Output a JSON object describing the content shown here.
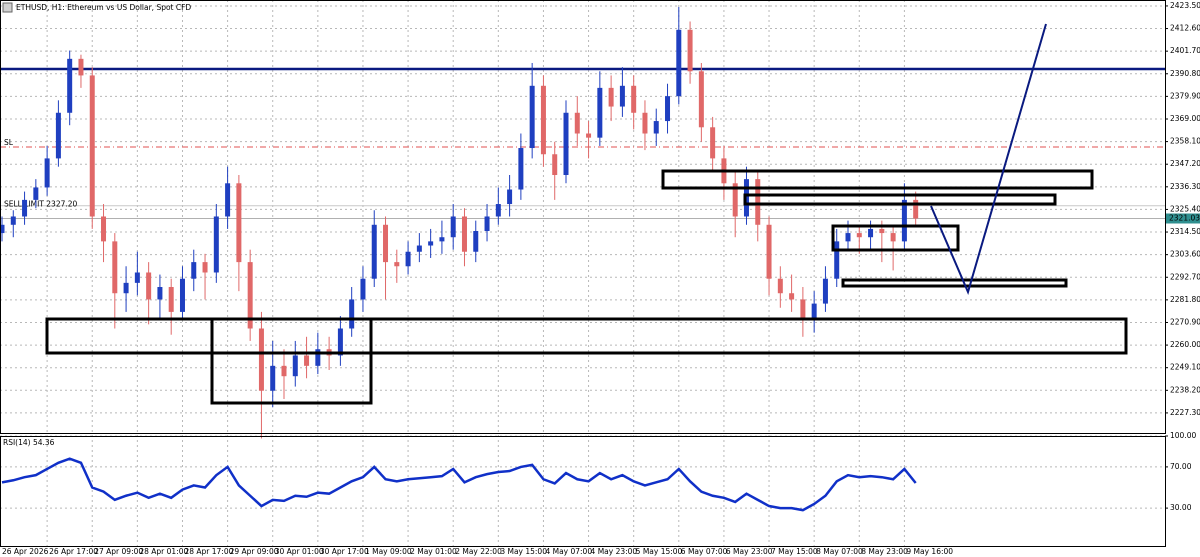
{
  "chart_data": {
    "type": "candlestick",
    "title": "ETHUSD, H1: Ethereum vs US Dollar, Spot CFD",
    "up_color": "#1f3fc0",
    "down_color": "#e06868",
    "grid": true,
    "categories": [
      "26 Apr 2026",
      null,
      null,
      null,
      "26 Apr 17:00",
      null,
      null,
      null,
      "27 Apr 09:00",
      null,
      null,
      null,
      "28 Apr 01:00",
      null,
      null,
      null,
      "28 Apr 17:00",
      null,
      null,
      null,
      "29 Apr 09:00",
      null,
      null,
      null,
      "30 Apr 01:00",
      null,
      null,
      null,
      "30 Apr 17:00",
      null,
      null,
      null,
      "1 May 09:00",
      null,
      null,
      null,
      "2 May 01:00",
      null,
      null,
      null,
      "2 May 22:00",
      null,
      null,
      null,
      "3 May 15:00",
      null,
      null,
      null,
      "4 May 07:00",
      null,
      null,
      null,
      "4 May 23:00",
      null,
      null,
      null,
      "5 May 15:00",
      null,
      null,
      null,
      "6 May 07:00",
      null,
      null,
      null,
      "6 May 23:00",
      null,
      null,
      null,
      "7 May 15:00",
      null,
      null,
      null,
      "8 May 07:00",
      null,
      null,
      null,
      "8 May 23:00",
      null,
      null,
      null,
      "9 May 16:00",
      null
    ],
    "ohlc": [
      [
        2314,
        2322,
        2310,
        2318
      ],
      [
        2318,
        2325,
        2312,
        2322
      ],
      [
        2322,
        2334,
        2318,
        2330
      ],
      [
        2330,
        2340,
        2326,
        2336
      ],
      [
        2336,
        2356,
        2332,
        2350
      ],
      [
        2350,
        2378,
        2346,
        2372
      ],
      [
        2372,
        2402,
        2366,
        2398
      ],
      [
        2398,
        2400,
        2384,
        2390
      ],
      [
        2390,
        2394,
        2316,
        2322
      ],
      [
        2322,
        2328,
        2300,
        2310
      ],
      [
        2310,
        2314,
        2268,
        2285
      ],
      [
        2285,
        2298,
        2276,
        2290
      ],
      [
        2290,
        2305,
        2284,
        2295
      ],
      [
        2295,
        2300,
        2270,
        2282
      ],
      [
        2282,
        2294,
        2272,
        2288
      ],
      [
        2288,
        2292,
        2265,
        2276
      ],
      [
        2276,
        2298,
        2272,
        2292
      ],
      [
        2292,
        2306,
        2286,
        2300
      ],
      [
        2300,
        2304,
        2282,
        2295
      ],
      [
        2295,
        2328,
        2290,
        2322
      ],
      [
        2322,
        2346,
        2316,
        2338
      ],
      [
        2338,
        2342,
        2286,
        2300
      ],
      [
        2300,
        2306,
        2262,
        2268
      ],
      [
        2268,
        2276,
        2215,
        2238
      ],
      [
        2238,
        2262,
        2230,
        2250
      ],
      [
        2250,
        2258,
        2234,
        2245
      ],
      [
        2245,
        2262,
        2240,
        2255
      ],
      [
        2255,
        2264,
        2244,
        2250
      ],
      [
        2250,
        2266,
        2246,
        2258
      ],
      [
        2258,
        2264,
        2248,
        2255
      ],
      [
        2255,
        2274,
        2250,
        2268
      ],
      [
        2268,
        2288,
        2264,
        2282
      ],
      [
        2282,
        2298,
        2276,
        2292
      ],
      [
        2292,
        2325,
        2288,
        2318
      ],
      [
        2318,
        2322,
        2282,
        2300
      ],
      [
        2300,
        2306,
        2290,
        2298
      ],
      [
        2298,
        2310,
        2294,
        2305
      ],
      [
        2305,
        2314,
        2300,
        2308
      ],
      [
        2308,
        2316,
        2302,
        2310
      ],
      [
        2310,
        2320,
        2304,
        2312
      ],
      [
        2312,
        2328,
        2306,
        2322
      ],
      [
        2322,
        2326,
        2298,
        2305
      ],
      [
        2305,
        2320,
        2300,
        2315
      ],
      [
        2315,
        2328,
        2310,
        2322
      ],
      [
        2322,
        2336,
        2318,
        2328
      ],
      [
        2328,
        2342,
        2322,
        2335
      ],
      [
        2335,
        2362,
        2330,
        2355
      ],
      [
        2355,
        2396,
        2350,
        2385
      ],
      [
        2385,
        2390,
        2346,
        2352
      ],
      [
        2352,
        2358,
        2330,
        2342
      ],
      [
        2342,
        2378,
        2338,
        2372
      ],
      [
        2372,
        2380,
        2356,
        2362
      ],
      [
        2362,
        2368,
        2350,
        2360
      ],
      [
        2360,
        2392,
        2356,
        2384
      ],
      [
        2384,
        2390,
        2368,
        2375
      ],
      [
        2375,
        2394,
        2370,
        2385
      ],
      [
        2385,
        2390,
        2364,
        2372
      ],
      [
        2372,
        2378,
        2354,
        2362
      ],
      [
        2362,
        2374,
        2356,
        2368
      ],
      [
        2368,
        2386,
        2362,
        2380
      ],
      [
        2380,
        2423,
        2376,
        2412
      ],
      [
        2412,
        2416,
        2386,
        2392
      ],
      [
        2392,
        2396,
        2358,
        2365
      ],
      [
        2365,
        2370,
        2344,
        2350
      ],
      [
        2350,
        2356,
        2330,
        2338
      ],
      [
        2338,
        2344,
        2312,
        2322
      ],
      [
        2322,
        2346,
        2318,
        2340
      ],
      [
        2340,
        2344,
        2310,
        2318
      ],
      [
        2318,
        2322,
        2284,
        2292
      ],
      [
        2292,
        2298,
        2278,
        2285
      ],
      [
        2285,
        2294,
        2276,
        2282
      ],
      [
        2282,
        2288,
        2264,
        2272
      ],
      [
        2272,
        2286,
        2266,
        2280
      ],
      [
        2280,
        2298,
        2276,
        2292
      ],
      [
        2292,
        2316,
        2288,
        2310
      ],
      [
        2310,
        2320,
        2306,
        2314
      ],
      [
        2314,
        2318,
        2304,
        2312
      ],
      [
        2312,
        2320,
        2306,
        2316
      ],
      [
        2316,
        2320,
        2300,
        2314
      ],
      [
        2314,
        2318,
        2296,
        2310
      ],
      [
        2310,
        2338,
        2306,
        2330
      ],
      [
        2330,
        2334,
        2318,
        2321.03
      ]
    ],
    "ylim": [
      2218.1,
      2425.4
    ],
    "yticks": [
      {
        "value": 2423.5,
        "label": "2423.50"
      },
      {
        "value": 2412.6,
        "label": "2412.60"
      },
      {
        "value": 2401.7,
        "label": "2401.70"
      },
      {
        "value": 2390.8,
        "label": "2390.80"
      },
      {
        "value": 2379.9,
        "label": "2379.90"
      },
      {
        "value": 2369,
        "label": "2369.00"
      },
      {
        "value": 2358.1,
        "label": "2358.10"
      },
      {
        "value": 2347.2,
        "label": "2347.20"
      },
      {
        "value": 2336.3,
        "label": "2336.30"
      },
      {
        "value": 2325.4,
        "label": "2325.40"
      },
      {
        "value": 2314.5,
        "label": "2314.50"
      },
      {
        "value": 2303.6,
        "label": "2303.60"
      },
      {
        "value": 2292.7,
        "label": "2292.70"
      },
      {
        "value": 2281.8,
        "label": "2281.80"
      },
      {
        "value": 2270.9,
        "label": "2270.90"
      },
      {
        "value": 2260,
        "label": "2260.00"
      },
      {
        "value": 2249.1,
        "label": "2249.10"
      },
      {
        "value": 2238.2,
        "label": "2238.20"
      },
      {
        "value": 2227.3,
        "label": "2227.30"
      }
    ],
    "current_price": 2321.03,
    "sell_limit": {
      "value": 2327.2,
      "label": "SELL LIMIT 2327.20"
    },
    "sl_label": "SL",
    "rsi": {
      "label": "RSI(14) 54.36",
      "color": "#1030c8",
      "values": [
        55,
        57,
        60,
        62,
        68,
        74,
        78,
        74,
        50,
        46,
        38,
        42,
        45,
        40,
        44,
        40,
        48,
        52,
        50,
        62,
        70,
        52,
        42,
        32,
        38,
        37,
        42,
        41,
        45,
        44,
        50,
        56,
        60,
        70,
        58,
        56,
        58,
        59,
        60,
        61,
        68,
        55,
        60,
        63,
        65,
        66,
        70,
        72,
        58,
        54,
        64,
        58,
        56,
        64,
        58,
        62,
        56,
        52,
        55,
        58,
        68,
        56,
        46,
        42,
        40,
        36,
        44,
        38,
        32,
        30,
        30,
        28,
        34,
        42,
        56,
        62,
        60,
        61,
        60,
        58,
        68,
        54.36
      ],
      "ylim": [
        0,
        100
      ],
      "yticks": [
        {
          "value": 100,
          "label": "100.00"
        },
        {
          "value": 70,
          "label": "70.00"
        },
        {
          "value": 30,
          "label": "30.00"
        }
      ]
    }
  }
}
